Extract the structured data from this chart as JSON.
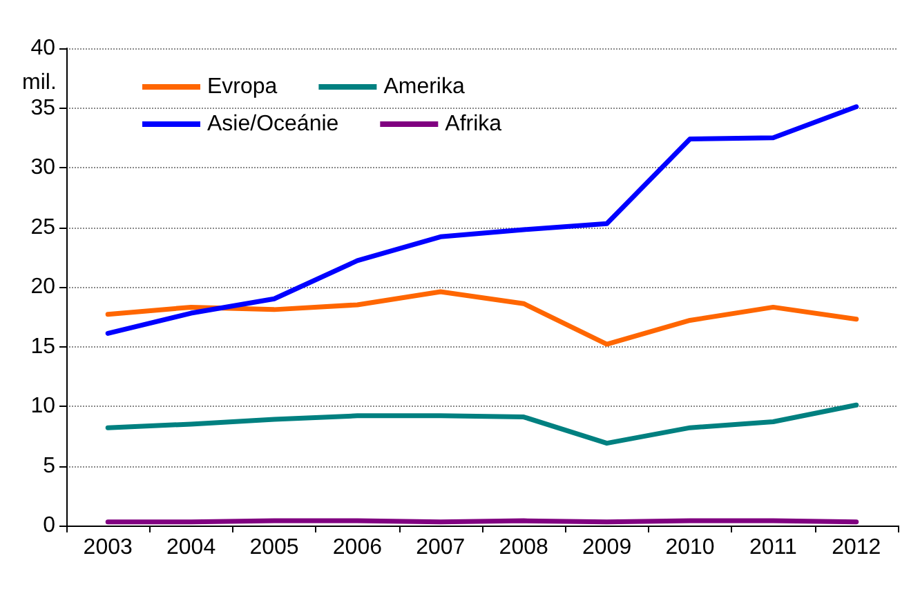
{
  "chart_data": {
    "type": "line",
    "ylabel": "mil.",
    "categories": [
      "2003",
      "2004",
      "2005",
      "2006",
      "2007",
      "2008",
      "2009",
      "2010",
      "2011",
      "2012"
    ],
    "series": [
      {
        "name": "Evropa",
        "color": "#ff6600",
        "values": [
          17.7,
          18.3,
          18.1,
          18.5,
          19.6,
          18.6,
          15.2,
          17.2,
          18.3,
          17.3
        ]
      },
      {
        "name": "Amerika",
        "color": "#008080",
        "values": [
          8.2,
          8.5,
          8.9,
          9.2,
          9.2,
          9.1,
          6.9,
          8.2,
          8.7,
          10.1
        ]
      },
      {
        "name": "Asie/Oceánie",
        "color": "#0000ff",
        "values": [
          16.1,
          17.8,
          19.0,
          22.2,
          24.2,
          24.8,
          25.3,
          32.4,
          32.5,
          35.1
        ]
      },
      {
        "name": "Afrika",
        "color": "#800080",
        "values": [
          0.3,
          0.3,
          0.4,
          0.4,
          0.3,
          0.4,
          0.3,
          0.4,
          0.4,
          0.3
        ]
      }
    ],
    "ylim": [
      0,
      40
    ],
    "yticks": [
      0,
      5,
      10,
      15,
      20,
      25,
      30,
      35,
      40
    ],
    "grid": "y",
    "legend": "top left",
    "marker": "none",
    "line_style": "solid"
  }
}
